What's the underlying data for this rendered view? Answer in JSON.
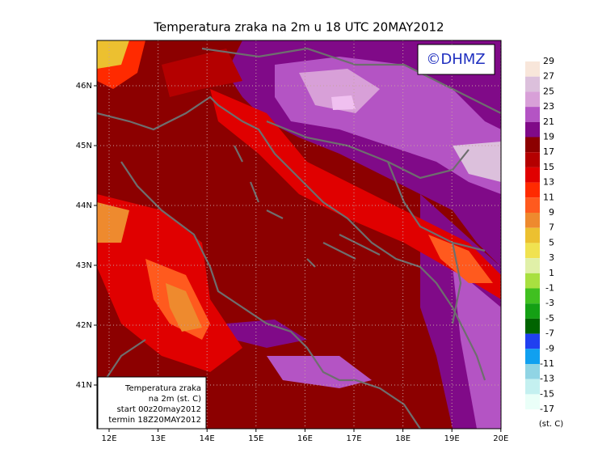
{
  "title": "Temperatura zraka na 2m u 18 UTC 20MAY2012",
  "copyright": "©DHMZ",
  "lat_labels": [
    "46N",
    "45N",
    "44N",
    "43N",
    "42N",
    "41N"
  ],
  "lon_labels": [
    "12E",
    "13E",
    "14E",
    "15E",
    "16E",
    "17E",
    "18E",
    "19E",
    "20E"
  ],
  "info_box": [
    "Temperatura zraka",
    "na 2m (st. C)",
    "start 00z20may2012",
    "termin 18Z20MAY2012"
  ],
  "colorbar": {
    "labels": [
      29,
      27,
      25,
      23,
      21,
      19,
      17,
      15,
      13,
      11,
      9,
      7,
      5,
      3,
      1,
      -1,
      -3,
      -5,
      -7,
      -9,
      -11,
      -13,
      -15,
      -17
    ],
    "colors": [
      "#f8e6da",
      "#dcc0dc",
      "#d8a0d8",
      "#b454c4",
      "#800a88",
      "#8c0000",
      "#b40000",
      "#e00000",
      "#ff2a00",
      "#ff5a1e",
      "#ee8a2e",
      "#ecc030",
      "#f0e250",
      "#e0f0a8",
      "#a8e040",
      "#40c020",
      "#14a014",
      "#006400",
      "#2040f0",
      "#10a0f0",
      "#90d4e4",
      "#c4f0f0",
      "#eafff8"
    ],
    "unit": "(st. C)"
  }
}
